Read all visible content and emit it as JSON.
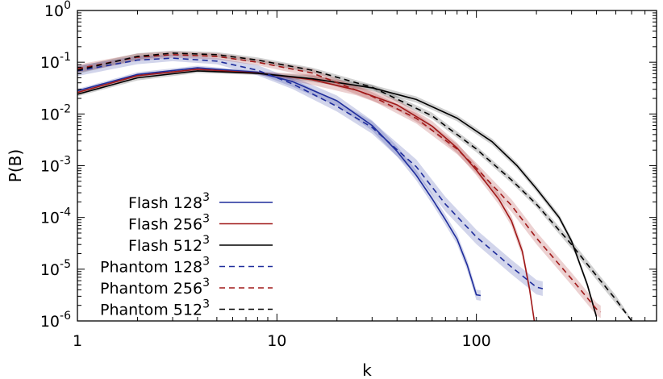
{
  "chart_data": {
    "type": "line",
    "xlabel": "k",
    "ylabel": "P(B)",
    "xscale": "log",
    "yscale": "log",
    "xlim": [
      1,
      800
    ],
    "ylim": [
      1e-06,
      1
    ],
    "x_ticks": [
      {
        "value": 1,
        "label": "1"
      },
      {
        "value": 10,
        "label": "10"
      },
      {
        "value": 100,
        "label": "100"
      }
    ],
    "y_ticks": [
      {
        "value": 1,
        "base": "10",
        "exp": "0"
      },
      {
        "value": 0.1,
        "base": "10",
        "exp": "-1"
      },
      {
        "value": 0.01,
        "base": "10",
        "exp": "-2"
      },
      {
        "value": 0.001,
        "base": "10",
        "exp": "-3"
      },
      {
        "value": 0.0001,
        "base": "10",
        "exp": "-4"
      },
      {
        "value": 1e-05,
        "base": "10",
        "exp": "-5"
      },
      {
        "value": 1e-06,
        "base": "10",
        "exp": "-6"
      }
    ],
    "grid": false,
    "legend_position": "bottom-left",
    "series": [
      {
        "name": "Flash 128",
        "name_sup": "3",
        "color": "#1f2d9c",
        "dash": "solid",
        "x": [
          1,
          2,
          4,
          8,
          12,
          20,
          30,
          40,
          50,
          60,
          70,
          80,
          90,
          100,
          105
        ],
        "y": [
          0.028,
          0.058,
          0.078,
          0.064,
          0.042,
          0.018,
          0.006,
          0.0019,
          0.00065,
          0.00023,
          9e-05,
          3.8e-05,
          1.2e-05,
          3.2e-06,
          3.1e-06
        ],
        "band": [
          0.035,
          0.045,
          0.04,
          0.025,
          0.1,
          0.1,
          0.1,
          0.1,
          0.1,
          0.1,
          0.1,
          0.1,
          0.1,
          0.1,
          0.1
        ]
      },
      {
        "name": "Flash 256",
        "name_sup": "3",
        "color": "#a01818",
        "dash": "solid",
        "x": [
          1,
          2,
          4,
          8,
          15,
          25,
          40,
          60,
          80,
          100,
          130,
          150,
          170,
          185,
          195
        ],
        "y": [
          0.026,
          0.055,
          0.073,
          0.062,
          0.046,
          0.029,
          0.015,
          0.0058,
          0.0022,
          0.00082,
          0.00022,
          8.5e-05,
          2.2e-05,
          4e-06,
          8e-07
        ],
        "band": [
          0.03,
          0.04,
          0.04,
          0.03,
          0.1,
          0.1,
          0.1,
          0.1,
          0.1,
          0.1,
          0.1,
          0.1,
          0.1,
          0.1,
          0.1
        ]
      },
      {
        "name": "Flash 512",
        "name_sup": "3",
        "color": "#000000",
        "dash": "solid",
        "x": [
          1,
          2,
          4,
          8,
          15,
          30,
          50,
          80,
          120,
          160,
          200,
          260,
          300,
          360,
          400
        ],
        "y": [
          0.024,
          0.05,
          0.068,
          0.061,
          0.048,
          0.032,
          0.019,
          0.0083,
          0.0029,
          0.001,
          0.00036,
          0.0001,
          3.5e-05,
          5e-06,
          1.2e-06
        ],
        "band": [
          0.04,
          0.05,
          0.04,
          0.03,
          0.06,
          0.06,
          0.06,
          0.06,
          0.06,
          0.06,
          0.06,
          0.06,
          0.06,
          0.06,
          0.06
        ]
      },
      {
        "name": "Phantom 128",
        "name_sup": "3",
        "color": "#1f2d9c",
        "dash": "dashed",
        "x": [
          1,
          2,
          3,
          5,
          8,
          12,
          20,
          30,
          50,
          70,
          100,
          150,
          200,
          215
        ],
        "y": [
          0.068,
          0.11,
          0.12,
          0.105,
          0.07,
          0.038,
          0.014,
          0.0055,
          0.00095,
          0.00018,
          4.2e-05,
          1.1e-05,
          4.5e-06,
          4.2e-06
        ],
        "band": [
          0.1,
          0.08,
          0.06,
          0.06,
          0.1,
          0.1,
          0.1,
          0.12,
          0.14,
          0.14,
          0.14,
          0.14,
          0.14,
          0.14
        ]
      },
      {
        "name": "Phantom 256",
        "name_sup": "3",
        "color": "#a01818",
        "dash": "dashed",
        "x": [
          1,
          2,
          3,
          5,
          8,
          15,
          30,
          50,
          80,
          100,
          150,
          200,
          300,
          400,
          420
        ],
        "y": [
          0.075,
          0.125,
          0.14,
          0.13,
          0.1,
          0.062,
          0.022,
          0.0082,
          0.0021,
          0.0009,
          0.00017,
          4e-05,
          6.5e-06,
          1.7e-06,
          1.5e-06
        ],
        "band": [
          0.08,
          0.07,
          0.06,
          0.06,
          0.06,
          0.08,
          0.08,
          0.1,
          0.1,
          0.1,
          0.12,
          0.12,
          0.12,
          0.12,
          0.12
        ]
      },
      {
        "name": "Phantom 512",
        "name_sup": "3",
        "color": "#000000",
        "dash": "dashed",
        "x": [
          1,
          2,
          3,
          5,
          8,
          15,
          30,
          60,
          100,
          150,
          200,
          300,
          400,
          500,
          600
        ],
        "y": [
          0.07,
          0.13,
          0.15,
          0.14,
          0.11,
          0.07,
          0.033,
          0.0092,
          0.0021,
          0.00053,
          0.00018,
          3e-05,
          7.5e-06,
          2.6e-06,
          9e-07
        ],
        "band": [
          0.07,
          0.06,
          0.05,
          0.05,
          0.05,
          0.05,
          0.05,
          0.06,
          0.06,
          0.06,
          0.06,
          0.08,
          0.08,
          0.08,
          0.08
        ]
      }
    ]
  }
}
